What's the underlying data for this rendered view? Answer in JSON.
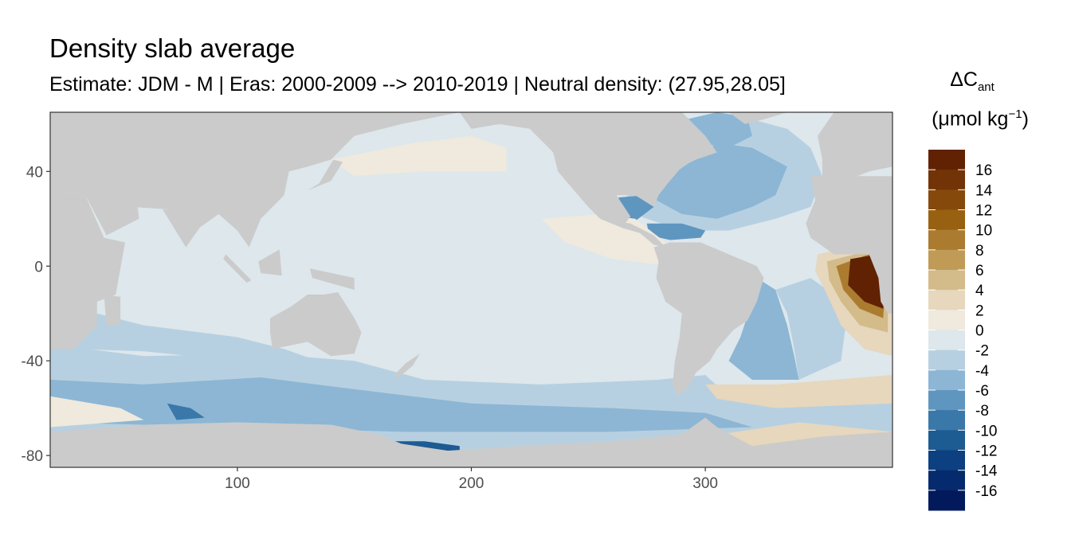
{
  "header": {
    "title": "Density slab average",
    "subtitle": "Estimate: JDM - M | Eras: 2000-2009 --> 2010-2019 | Neutral density: (27.95,28.05]"
  },
  "map": {
    "x_range": [
      20,
      380
    ],
    "y_range": [
      -85,
      65
    ],
    "x_ticks": [
      "100",
      "200",
      "300"
    ],
    "x_tick_values": [
      100,
      200,
      300
    ],
    "y_ticks": [
      "40",
      "0",
      "-40",
      "-80"
    ],
    "y_tick_values": [
      40,
      0,
      -40,
      -80
    ],
    "land_color": "#cbcbcb",
    "ocean_default_color": "#dde7ec"
  },
  "legend": {
    "title_main": "ΔC",
    "title_sub": "ant",
    "units_main": "(μmol kg",
    "units_sup": "−1",
    "units_end": ")",
    "labels": [
      "16",
      "14",
      "12",
      "10",
      "8",
      "6",
      "4",
      "2",
      "0",
      "-2",
      "-4",
      "-6",
      "-8",
      "-10",
      "-12",
      "-14",
      "-16"
    ],
    "colors": [
      "#612203",
      "#723306",
      "#854a0b",
      "#986112",
      "#ab7c2f",
      "#bf9b56",
      "#d3bb8a",
      "#e6d7bd",
      "#efe9de",
      "#dde7ec",
      "#b7d0e1",
      "#8cb6d4",
      "#5f96c0",
      "#3a78aa",
      "#1d5b93",
      "#0d4080",
      "#062a6e",
      "#021a5b"
    ]
  }
}
